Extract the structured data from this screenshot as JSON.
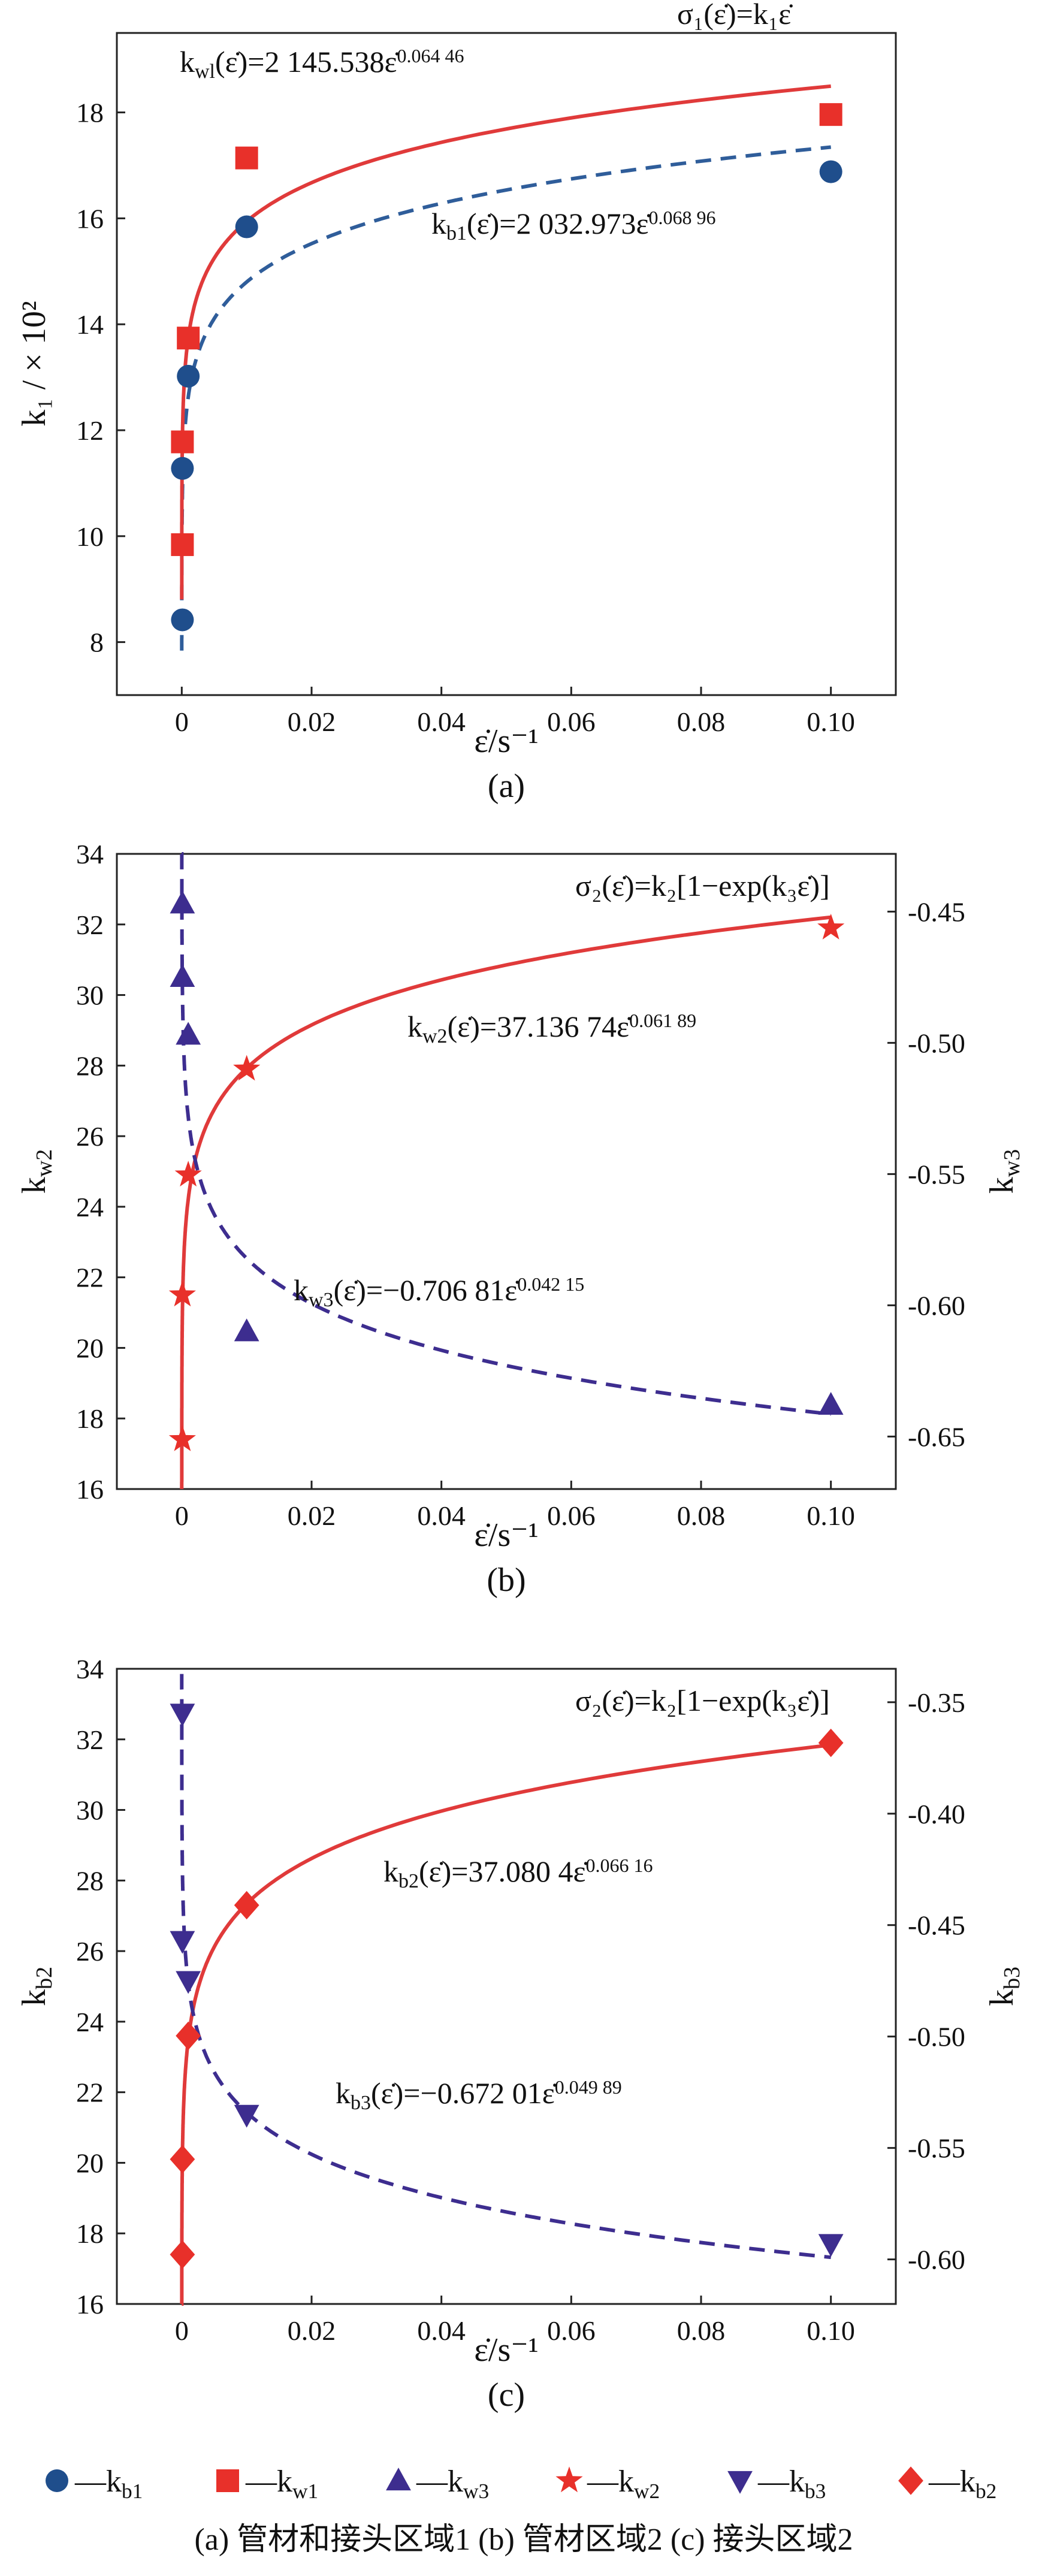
{
  "chart_data": [
    {
      "type": "scatter",
      "panel_label": "(a)",
      "xlabel": "ε̇/s⁻¹",
      "ylabel": "k₁ / × 10²",
      "xlim": [
        -0.01,
        0.11
      ],
      "ylim": [
        7,
        19.5
      ],
      "x_ticks": [
        0,
        0.02,
        0.04,
        0.06,
        0.08,
        0.1
      ],
      "x_tick_labels": [
        "0",
        "0.02",
        "0.04",
        "0.06",
        "0.08",
        "0.10"
      ],
      "y_ticks": [
        8,
        10,
        12,
        14,
        16,
        18
      ],
      "y_tick_labels": [
        "8",
        "10",
        "12",
        "14",
        "16",
        "18"
      ],
      "grid": false,
      "model_text": "σ₁(ε̇)=k₁ε̇",
      "series": [
        {
          "name": "k_b1",
          "marker": "circle",
          "color": "#1f4e8c",
          "points": [
            [
              0.0001,
              8.42
            ],
            [
              0.0001,
              11.28
            ],
            [
              0.001,
              13.02
            ],
            [
              0.01,
              15.84
            ],
            [
              0.1,
              16.88
            ]
          ],
          "fit": {
            "type": "power",
            "a": 20.32973,
            "b": 0.06896,
            "line": "dashed",
            "color": "#2f5d9a"
          },
          "fit_label": "k_b1(ε̇)=2 032.973ε̇^0.068 96"
        },
        {
          "name": "k_w1",
          "marker": "square",
          "color": "#e8302a",
          "points": [
            [
              0.0001,
              9.84
            ],
            [
              0.0001,
              11.78
            ],
            [
              0.001,
              13.74
            ],
            [
              0.01,
              17.14
            ],
            [
              0.1,
              17.96
            ]
          ],
          "fit": {
            "type": "power",
            "a": 21.45538,
            "b": 0.06446,
            "line": "solid",
            "color": "#e03a3a"
          },
          "fit_label": "k_wl(ε̇)=2 145.538ε̇^0.064 46"
        }
      ]
    },
    {
      "type": "scatter",
      "panel_label": "(b)",
      "xlabel": "ε̇/s⁻¹",
      "ylabel": "k_w2",
      "ylabel_right": "k_w3",
      "xlim": [
        -0.01,
        0.11
      ],
      "ylim": [
        16,
        34
      ],
      "ylim_right": [
        -0.67,
        -0.428
      ],
      "x_ticks": [
        0,
        0.02,
        0.04,
        0.06,
        0.08,
        0.1
      ],
      "x_tick_labels": [
        "0",
        "0.02",
        "0.04",
        "0.06",
        "0.08",
        "0.10"
      ],
      "y_ticks": [
        16,
        18,
        20,
        22,
        24,
        26,
        28,
        30,
        32,
        34
      ],
      "y_tick_labels": [
        "16",
        "18",
        "20",
        "22",
        "24",
        "26",
        "28",
        "30",
        "32",
        "34"
      ],
      "y_ticks_right": [
        -0.65,
        -0.6,
        -0.55,
        -0.5,
        -0.45
      ],
      "y_tick_labels_right": [
        "-0.65",
        "-0.60",
        "-0.55",
        "-0.50",
        "-0.45"
      ],
      "grid": false,
      "model_text": "σ₂(ε̇)=k₂[1−exp(k₃ε̇)]",
      "series": [
        {
          "name": "k_w2",
          "marker": "star",
          "color": "#e8302a",
          "axis": "left",
          "points": [
            [
              0.0001,
              17.4
            ],
            [
              0.0001,
              21.5
            ],
            [
              0.001,
              24.9
            ],
            [
              0.01,
              27.9
            ],
            [
              0.1,
              31.9
            ]
          ],
          "fit": {
            "type": "power",
            "a": 37.13674,
            "b": 0.06189,
            "line": "solid",
            "color": "#e03a3a"
          },
          "fit_label": "k_w2(ε̇)=37.136 74ε̇^0.061 89"
        },
        {
          "name": "k_w3",
          "marker": "triangle-up",
          "color": "#3d2d8f",
          "axis": "right",
          "points": [
            [
              0.0001,
              -0.447
            ],
            [
              0.0001,
              -0.475
            ],
            [
              0.001,
              -0.497
            ],
            [
              0.01,
              -0.61
            ],
            [
              0.1,
              -0.638
            ]
          ],
          "fit": {
            "type": "power",
            "a": -0.70681,
            "b": 0.04215,
            "line": "dashed",
            "color": "#3d2d8f"
          },
          "fit_label": "k_w3(ε̇)=−0.706 81ε̇^0.042 15"
        }
      ]
    },
    {
      "type": "scatter",
      "panel_label": "(c)",
      "xlabel": "ε̇/s⁻¹",
      "ylabel": "k_b2",
      "ylabel_right": "k_b3",
      "xlim": [
        -0.01,
        0.11
      ],
      "ylim": [
        16,
        34
      ],
      "ylim_right": [
        -0.62,
        -0.335
      ],
      "x_ticks": [
        0,
        0.02,
        0.04,
        0.06,
        0.08,
        0.1
      ],
      "x_tick_labels": [
        "0",
        "0.02",
        "0.04",
        "0.06",
        "0.08",
        "0.10"
      ],
      "y_ticks": [
        16,
        18,
        20,
        22,
        24,
        26,
        28,
        30,
        32,
        34
      ],
      "y_tick_labels": [
        "16",
        "18",
        "20",
        "22",
        "24",
        "26",
        "28",
        "30",
        "32",
        "34"
      ],
      "y_ticks_right": [
        -0.6,
        -0.55,
        -0.5,
        -0.45,
        -0.4,
        -0.35
      ],
      "y_tick_labels_right": [
        "-0.60",
        "-0.55",
        "-0.50",
        "-0.45",
        "-0.40",
        "-0.35"
      ],
      "grid": false,
      "model_text": "σ₂(ε̇)=k₂[1−exp(k₃ε̇)]",
      "series": [
        {
          "name": "k_b2",
          "marker": "diamond",
          "color": "#e8302a",
          "axis": "left",
          "points": [
            [
              0.0001,
              17.4
            ],
            [
              0.0001,
              20.1
            ],
            [
              0.001,
              23.6
            ],
            [
              0.01,
              27.3
            ],
            [
              0.1,
              31.9
            ]
          ],
          "fit": {
            "type": "power",
            "a": 37.0804,
            "b": 0.06616,
            "line": "solid",
            "color": "#e03a3a"
          },
          "fit_label": "k_b2(ε̇)=37.080 4ε̇^0.066 16"
        },
        {
          "name": "k_b3",
          "marker": "triangle-down",
          "color": "#3d2d8f",
          "axis": "right",
          "points": [
            [
              0.0001,
              -0.355
            ],
            [
              0.0001,
              -0.457
            ],
            [
              0.001,
              -0.475
            ],
            [
              0.01,
              -0.535
            ],
            [
              0.1,
              -0.593
            ]
          ],
          "fit": {
            "type": "power",
            "a": -0.67201,
            "b": 0.04989,
            "line": "dashed",
            "color": "#3d2d8f"
          },
          "fit_label": "k_b3(ε̇)=−0.672 01ε̇^0.049 89"
        }
      ]
    }
  ],
  "legend": [
    {
      "marker": "circle",
      "color": "#1f4e8c",
      "label": "—k_b1"
    },
    {
      "marker": "square",
      "color": "#e8302a",
      "label": "—k_w1"
    },
    {
      "marker": "triangle-up",
      "color": "#3d2d8f",
      "label": "—k_w3"
    },
    {
      "marker": "star",
      "color": "#e8302a",
      "label": "—k_w2"
    },
    {
      "marker": "triangle-down",
      "color": "#3d2d8f",
      "label": "—k_b3"
    },
    {
      "marker": "diamond",
      "color": "#e8302a",
      "label": "—k_b2"
    }
  ],
  "caption": "(a) 管材和接头区域1   (b) 管材区域2   (c) 接头区域2"
}
